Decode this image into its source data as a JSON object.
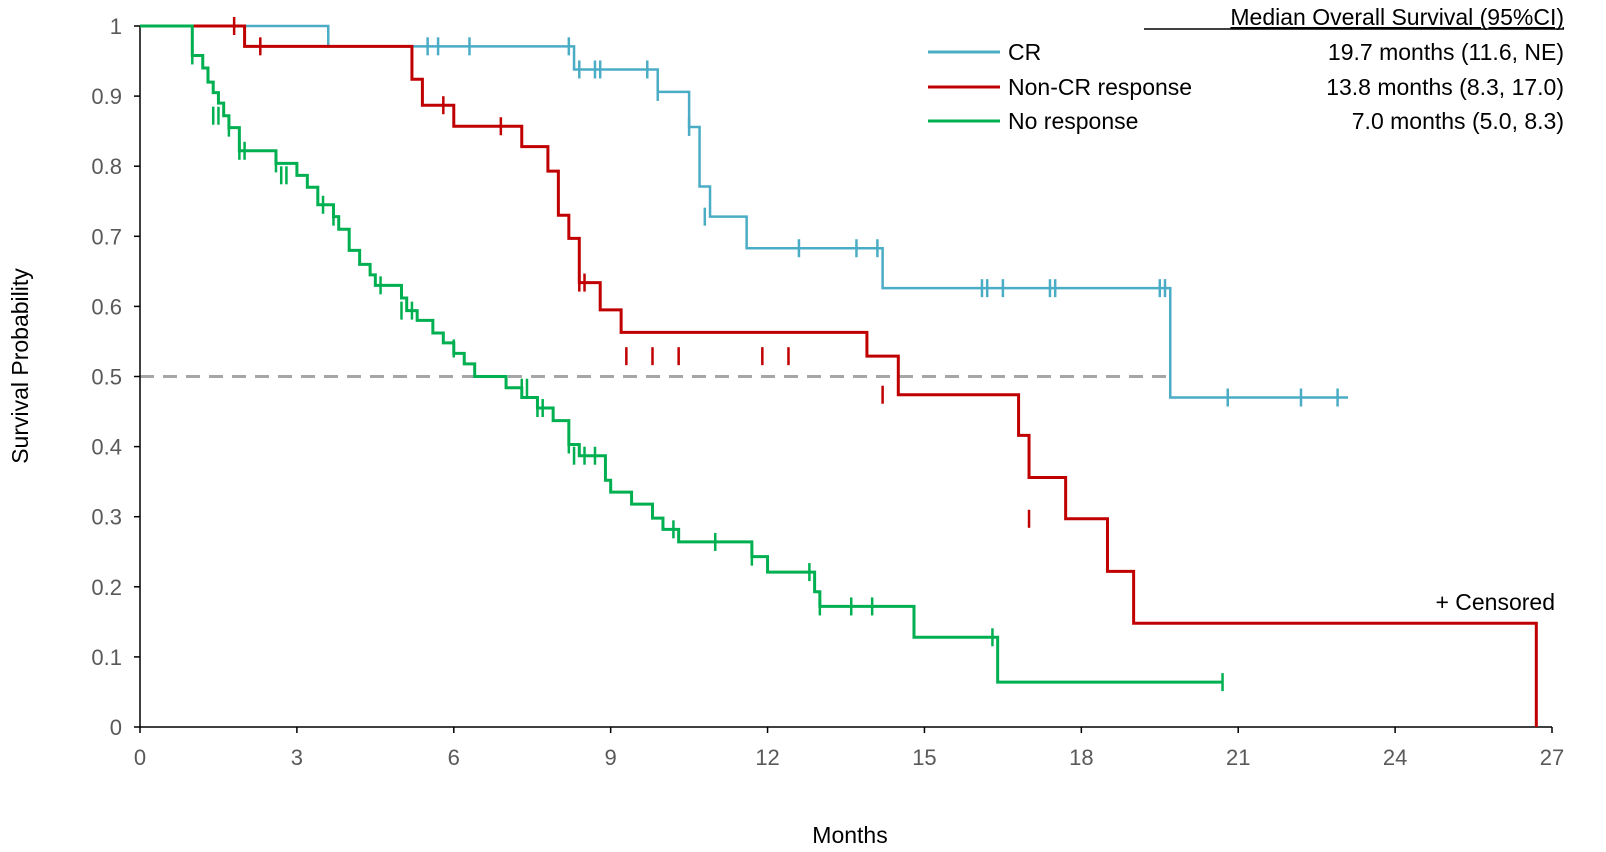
{
  "chart_data": {
    "type": "line",
    "step": true,
    "xlabel": "Months",
    "ylabel": "Survival Probability",
    "xlim": [
      0,
      27
    ],
    "ylim": [
      0,
      1
    ],
    "xticks": [
      0,
      3,
      6,
      9,
      12,
      15,
      18,
      21,
      24,
      27
    ],
    "yticks": [
      0,
      0.1,
      0.2,
      0.3,
      0.4,
      0.5,
      0.6,
      0.7,
      0.8,
      0.9,
      1
    ],
    "ytick_labels": [
      "0",
      "0.1",
      "0.2",
      "0.3",
      "0.4",
      "0.5",
      "0.6",
      "0.7",
      "0.8",
      "0.9",
      "1"
    ],
    "reference_line": {
      "y": 0.5,
      "style": "dashed",
      "color": "#a6a6a6"
    },
    "legend_header": "Median Overall Survival (95%CI)",
    "censored_note": "+ Censored",
    "series": [
      {
        "name": "CR",
        "color": "#4bacc6",
        "median_label": "19.7 months (11.6, NE)",
        "x": [
          0,
          3.6,
          8.3,
          9.9,
          10.5,
          10.7,
          10.9,
          11.6,
          14.2,
          19.7,
          23.1
        ],
        "y": [
          1,
          0.971,
          0.938,
          0.906,
          0.856,
          0.771,
          0.728,
          0.683,
          0.626,
          0.47,
          0.47
        ],
        "censored_x": [
          5.5,
          5.7,
          6.3,
          8.2,
          8.4,
          8.7,
          8.8,
          9.7,
          9.9,
          10.5,
          10.8,
          12.6,
          13.7,
          14.1,
          16.1,
          16.2,
          16.5,
          17.4,
          17.5,
          19.5,
          19.6,
          20.8,
          22.2,
          22.9
        ],
        "censored_y": [
          0.971,
          0.971,
          0.971,
          0.971,
          0.938,
          0.938,
          0.938,
          0.938,
          0.906,
          0.856,
          0.728,
          0.683,
          0.683,
          0.683,
          0.626,
          0.626,
          0.626,
          0.626,
          0.626,
          0.626,
          0.626,
          0.47,
          0.47,
          0.47
        ]
      },
      {
        "name": "Non-CR response",
        "color": "#c00000",
        "median_label": "13.8 months (8.3, 17.0)",
        "x": [
          0,
          2.0,
          5.2,
          5.4,
          6.0,
          6.9,
          7.3,
          7.8,
          8.0,
          8.2,
          8.4,
          8.8,
          9.2,
          13.9,
          14.5,
          16.8,
          17.0,
          17.7,
          18.5,
          19.0,
          26.7
        ],
        "y": [
          1,
          0.971,
          0.924,
          0.887,
          0.857,
          0.857,
          0.828,
          0.793,
          0.73,
          0.697,
          0.634,
          0.595,
          0.563,
          0.529,
          0.474,
          0.416,
          0.356,
          0.297,
          0.222,
          0.148,
          0.074
        ],
        "end": {
          "x": 26.7,
          "y": 0
        },
        "censored_x": [
          1.8,
          2.3,
          5.8,
          6.9,
          8.4,
          8.5,
          9.3,
          9.8,
          10.3,
          11.9,
          12.4,
          14.2,
          17.0
        ],
        "censored_y": [
          1,
          0.971,
          0.887,
          0.857,
          0.634,
          0.634,
          0.529,
          0.529,
          0.529,
          0.529,
          0.529,
          0.474,
          0.297
        ]
      },
      {
        "name": "No response",
        "color": "#00b050",
        "median_label": "7.0 months (5.0, 8.3)",
        "x": [
          0,
          1.0,
          1.2,
          1.3,
          1.4,
          1.5,
          1.6,
          1.7,
          1.9,
          2.3,
          2.6,
          3.0,
          3.2,
          3.4,
          3.7,
          3.8,
          4.0,
          4.2,
          4.4,
          4.5,
          5.0,
          5.1,
          5.3,
          5.6,
          5.8,
          6.0,
          6.2,
          6.4,
          6.8,
          7.0,
          7.3,
          7.6,
          7.9,
          8.2,
          8.4,
          8.9,
          9.0,
          9.4,
          9.8,
          10.0,
          10.3,
          10.5,
          11.7,
          12.0,
          12.9,
          13.0,
          14.8,
          16.4,
          20.7
        ],
        "y": [
          1,
          0.958,
          0.94,
          0.92,
          0.905,
          0.89,
          0.872,
          0.855,
          0.822,
          0.822,
          0.804,
          0.787,
          0.77,
          0.745,
          0.728,
          0.71,
          0.68,
          0.66,
          0.645,
          0.63,
          0.612,
          0.594,
          0.58,
          0.562,
          0.548,
          0.533,
          0.518,
          0.5,
          0.5,
          0.484,
          0.47,
          0.455,
          0.437,
          0.403,
          0.387,
          0.352,
          0.335,
          0.318,
          0.298,
          0.282,
          0.264,
          0.264,
          0.243,
          0.221,
          0.193,
          0.172,
          0.128,
          0.064,
          0.064
        ],
        "censored_x": [
          1.0,
          1.4,
          1.5,
          1.7,
          1.9,
          2.0,
          2.6,
          2.7,
          2.8,
          3.5,
          3.7,
          4.6,
          5.0,
          5.2,
          6.0,
          7.3,
          7.4,
          7.6,
          7.7,
          8.2,
          8.3,
          8.5,
          8.7,
          10.2,
          11.0,
          11.7,
          12.8,
          13.0,
          13.6,
          14.0,
          16.3,
          20.7
        ],
        "censored_y": [
          0.958,
          0.872,
          0.872,
          0.855,
          0.822,
          0.822,
          0.804,
          0.787,
          0.787,
          0.745,
          0.728,
          0.63,
          0.594,
          0.594,
          0.54,
          0.484,
          0.484,
          0.455,
          0.455,
          0.403,
          0.387,
          0.387,
          0.387,
          0.282,
          0.264,
          0.243,
          0.221,
          0.172,
          0.172,
          0.172,
          0.128,
          0.064
        ]
      }
    ]
  }
}
